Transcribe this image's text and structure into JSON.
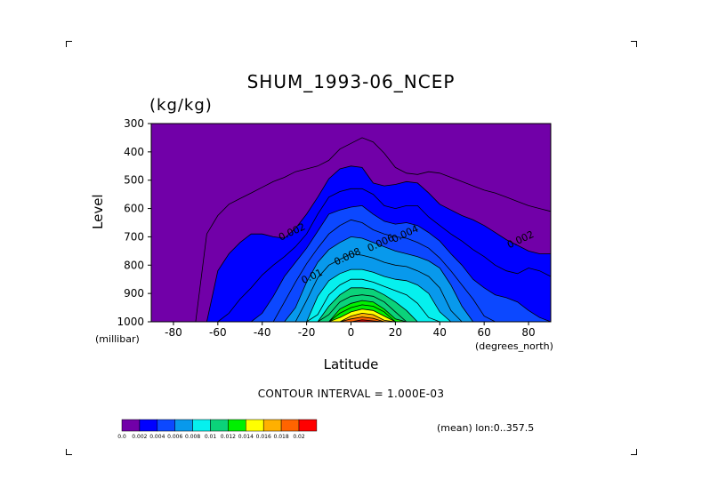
{
  "chart_data": {
    "type": "heatmap",
    "title": "SHUM_1993-06_NCEP",
    "units": "(kg/kg)",
    "ylabel": "Level",
    "ylabel_units": "(millibar)",
    "xlabel": "Latitude",
    "xlabel_units": "(degrees_north)",
    "xlim": [
      -90,
      90
    ],
    "ylim": [
      1000,
      300
    ],
    "x_ticks": [
      -80,
      -60,
      -40,
      -20,
      0,
      20,
      40,
      60,
      80
    ],
    "y_ticks": [
      300,
      400,
      500,
      600,
      700,
      800,
      900,
      1000
    ],
    "contour_interval_text": "CONTOUR INTERVAL = 1.000E-03",
    "mean_text": "(mean) lon:0..357.5",
    "levels": [
      0.0,
      0.002,
      0.004,
      0.006,
      0.008,
      0.01,
      0.012,
      0.014,
      0.016,
      0.018,
      0.02
    ],
    "colorbar_labels": [
      "0.0",
      "0.002",
      "0.004",
      "0.006",
      "0.008",
      "0.01",
      "0.012",
      "0.014",
      "0.016",
      "0.018",
      "0.02"
    ],
    "contour_labels": [
      {
        "text": "0.002",
        "lat": -26,
        "lev": 693
      },
      {
        "text": "0.004",
        "lat": 25,
        "lev": 700
      },
      {
        "text": "0.006",
        "lat": 14,
        "lev": 732
      },
      {
        "text": "0.008",
        "lat": -1,
        "lev": 780
      },
      {
        "text": "0.01",
        "lat": -17,
        "lev": 850
      },
      {
        "text": "0.002",
        "lat": 77,
        "lev": 720
      }
    ],
    "colors": [
      "#7100a8",
      "#0000ff",
      "#0c48ff",
      "#0899ec",
      "#06f0ee",
      "#0bd27a",
      "#00f000",
      "#ffff00",
      "#ffb000",
      "#ff6400",
      "#ff0000"
    ],
    "profiles": {
      "lat": [
        -70,
        -65,
        -60,
        -55,
        -50,
        -45,
        -40,
        -35,
        -30,
        -25,
        -20,
        -15,
        -10,
        -5,
        0,
        5,
        10,
        15,
        20,
        25,
        30,
        35,
        40,
        45,
        50,
        55,
        60,
        65,
        70,
        75,
        80,
        85,
        90
      ],
      "0.001": [
        1000,
        690,
        625,
        585,
        565,
        545,
        525,
        505,
        490,
        470,
        460,
        450,
        430,
        390,
        370,
        350,
        365,
        405,
        455,
        475,
        480,
        470,
        475,
        490,
        505,
        520,
        535,
        545,
        560,
        575,
        590,
        600,
        610
      ],
      "0.002": [
        1000,
        1000,
        820,
        760,
        720,
        690,
        690,
        700,
        705,
        670,
        620,
        560,
        495,
        460,
        450,
        455,
        510,
        520,
        515,
        505,
        510,
        545,
        585,
        605,
        625,
        640,
        660,
        685,
        710,
        730,
        750,
        760,
        760
      ],
      "0.003": [
        1000,
        1000,
        1000,
        970,
        920,
        880,
        835,
        800,
        770,
        735,
        690,
        620,
        560,
        540,
        530,
        530,
        550,
        590,
        600,
        590,
        590,
        630,
        660,
        690,
        715,
        745,
        770,
        800,
        820,
        830,
        810,
        820,
        840
      ],
      "0.004": [
        1000,
        1000,
        1000,
        1000,
        1000,
        1000,
        970,
        910,
        840,
        790,
        740,
        680,
        620,
        605,
        595,
        590,
        620,
        645,
        655,
        650,
        660,
        685,
        715,
        760,
        800,
        850,
        880,
        905,
        915,
        930,
        960,
        985,
        1000
      ],
      "0.005": [
        1000,
        1000,
        1000,
        1000,
        1000,
        1000,
        1000,
        1000,
        930,
        860,
        795,
        740,
        690,
        660,
        640,
        650,
        675,
        690,
        700,
        705,
        720,
        740,
        775,
        820,
        870,
        920,
        980,
        1000,
        1000,
        1000,
        1000,
        1000,
        1000
      ],
      "0.006": [
        1000,
        1000,
        1000,
        1000,
        1000,
        1000,
        1000,
        1000,
        1000,
        950,
        860,
        790,
        745,
        720,
        700,
        705,
        720,
        735,
        750,
        760,
        770,
        785,
        810,
        870,
        945,
        1000,
        1000,
        1000,
        1000,
        1000,
        1000,
        1000,
        1000
      ],
      "0.007": [
        1000,
        1000,
        1000,
        1000,
        1000,
        1000,
        1000,
        1000,
        1000,
        1000,
        925,
        845,
        800,
        780,
        760,
        765,
        775,
        790,
        800,
        805,
        820,
        840,
        880,
        960,
        1000,
        1000,
        1000,
        1000,
        1000,
        1000,
        1000,
        1000,
        1000
      ],
      "0.008": [
        1000,
        1000,
        1000,
        1000,
        1000,
        1000,
        1000,
        1000,
        1000,
        1000,
        1000,
        910,
        855,
        830,
        815,
        815,
        825,
        840,
        850,
        855,
        870,
        900,
        965,
        1000,
        1000,
        1000,
        1000,
        1000,
        1000,
        1000,
        1000,
        1000,
        1000
      ],
      "0.009": [
        1000,
        1000,
        1000,
        1000,
        1000,
        1000,
        1000,
        1000,
        1000,
        1000,
        1000,
        975,
        905,
        870,
        850,
        850,
        860,
        875,
        890,
        905,
        935,
        985,
        1000,
        1000,
        1000,
        1000,
        1000,
        1000,
        1000,
        1000,
        1000,
        1000,
        1000
      ],
      "0.010": [
        1000,
        1000,
        1000,
        1000,
        1000,
        1000,
        1000,
        1000,
        1000,
        1000,
        1000,
        1000,
        945,
        905,
        880,
        880,
        885,
        905,
        930,
        960,
        1000,
        1000,
        1000,
        1000,
        1000,
        1000,
        1000,
        1000,
        1000,
        1000,
        1000,
        1000,
        1000
      ],
      "0.011": [
        1000,
        1000,
        1000,
        1000,
        1000,
        1000,
        1000,
        1000,
        1000,
        1000,
        1000,
        1000,
        975,
        930,
        910,
        905,
        910,
        930,
        965,
        1000,
        1000,
        1000,
        1000,
        1000,
        1000,
        1000,
        1000,
        1000,
        1000,
        1000,
        1000,
        1000,
        1000
      ],
      "0.012": [
        1000,
        1000,
        1000,
        1000,
        1000,
        1000,
        1000,
        1000,
        1000,
        1000,
        1000,
        1000,
        1000,
        955,
        935,
        925,
        930,
        955,
        990,
        1000,
        1000,
        1000,
        1000,
        1000,
        1000,
        1000,
        1000,
        1000,
        1000,
        1000,
        1000,
        1000,
        1000
      ],
      "0.013": [
        1000,
        1000,
        1000,
        1000,
        1000,
        1000,
        1000,
        1000,
        1000,
        1000,
        1000,
        1000,
        1000,
        970,
        950,
        940,
        945,
        965,
        1000,
        1000,
        1000,
        1000,
        1000,
        1000,
        1000,
        1000,
        1000,
        1000,
        1000,
        1000,
        1000,
        1000,
        1000
      ],
      "0.014": [
        1000,
        1000,
        1000,
        1000,
        1000,
        1000,
        1000,
        1000,
        1000,
        1000,
        1000,
        1000,
        1000,
        985,
        965,
        955,
        960,
        980,
        1000,
        1000,
        1000,
        1000,
        1000,
        1000,
        1000,
        1000,
        1000,
        1000,
        1000,
        1000,
        1000,
        1000,
        1000
      ],
      "0.015": [
        1000,
        1000,
        1000,
        1000,
        1000,
        1000,
        1000,
        1000,
        1000,
        1000,
        1000,
        1000,
        1000,
        1000,
        980,
        970,
        975,
        995,
        1000,
        1000,
        1000,
        1000,
        1000,
        1000,
        1000,
        1000,
        1000,
        1000,
        1000,
        1000,
        1000,
        1000,
        1000
      ],
      "0.016": [
        1000,
        1000,
        1000,
        1000,
        1000,
        1000,
        1000,
        1000,
        1000,
        1000,
        1000,
        1000,
        1000,
        1000,
        990,
        983,
        988,
        1000,
        1000,
        1000,
        1000,
        1000,
        1000,
        1000,
        1000,
        1000,
        1000,
        1000,
        1000,
        1000,
        1000,
        1000,
        1000
      ],
      "0.017": [
        1000,
        1000,
        1000,
        1000,
        1000,
        1000,
        1000,
        1000,
        1000,
        1000,
        1000,
        1000,
        1000,
        1000,
        1000,
        993,
        997,
        1000,
        1000,
        1000,
        1000,
        1000,
        1000,
        1000,
        1000,
        1000,
        1000,
        1000,
        1000,
        1000,
        1000,
        1000,
        1000
      ]
    }
  }
}
